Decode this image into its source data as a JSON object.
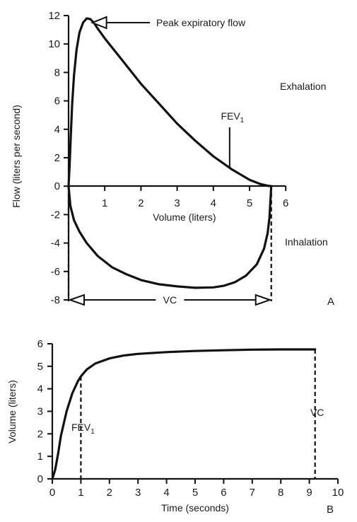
{
  "chart_data": [
    {
      "type": "line",
      "panel": "A",
      "xlabel": "Volume (liters)",
      "ylabel": "Flow (liters per second)",
      "xlim": [
        0,
        6
      ],
      "ylim": [
        -8,
        12
      ],
      "x_ticks": [
        "1",
        "2",
        "3",
        "4",
        "5",
        "6"
      ],
      "y_ticks": [
        "12",
        "10",
        "8",
        "6",
        "4",
        "2",
        "0",
        "-2",
        "-4",
        "-6",
        "-8"
      ],
      "grid": false,
      "series": [
        {
          "x": [
            0.0,
            0.03,
            0.06,
            0.1,
            0.15,
            0.22,
            0.3,
            0.4,
            0.5,
            0.6,
            0.7,
            0.8,
            1.0,
            1.25,
            1.5,
            2.0,
            2.5,
            3.0,
            3.5,
            4.0,
            4.5,
            5.0,
            5.3,
            5.5,
            5.6
          ],
          "y": [
            0.0,
            1.5,
            3.5,
            5.8,
            7.8,
            9.6,
            10.8,
            11.5,
            11.8,
            11.75,
            11.5,
            11.1,
            10.4,
            9.6,
            8.8,
            7.2,
            5.8,
            4.4,
            3.2,
            2.1,
            1.2,
            0.45,
            0.15,
            0.03,
            0.0
          ]
        },
        {
          "x": [
            0.0,
            0.05,
            0.15,
            0.3,
            0.5,
            0.8,
            1.2,
            1.6,
            2.0,
            2.5,
            3.0,
            3.5,
            4.0,
            4.3,
            4.6,
            4.9,
            5.2,
            5.4,
            5.5,
            5.55,
            5.6
          ],
          "y": [
            0.0,
            -1.4,
            -2.4,
            -3.2,
            -4.0,
            -4.9,
            -5.7,
            -6.2,
            -6.6,
            -6.9,
            -7.05,
            -7.15,
            -7.12,
            -7.0,
            -6.75,
            -6.3,
            -5.5,
            -4.4,
            -3.3,
            -2.2,
            0.0
          ]
        }
      ],
      "annotations": {
        "peak": "Peak expiratory flow",
        "fev1_main": "FEV",
        "fev1_sub": "1",
        "fev1_x": 4.45,
        "fev1_y": 1.3,
        "exhalation": "Exhalation",
        "inhalation": "Inhalation",
        "vc": "VC",
        "vc_range": [
          0.0,
          5.6
        ],
        "panel_letter": "A"
      }
    },
    {
      "type": "line",
      "panel": "B",
      "xlabel": "Time (seconds)",
      "ylabel": "Volume (liters)",
      "xlim": [
        0,
        10
      ],
      "ylim": [
        0,
        6
      ],
      "x_ticks": [
        "0",
        "1",
        "2",
        "3",
        "4",
        "5",
        "6",
        "7",
        "8",
        "9",
        "10"
      ],
      "y_ticks": [
        "6",
        "5",
        "4",
        "3",
        "2",
        "1",
        "0"
      ],
      "grid": false,
      "series": [
        {
          "x": [
            0.0,
            0.1,
            0.2,
            0.3,
            0.5,
            0.7,
            0.9,
            1.0,
            1.2,
            1.5,
            2.0,
            2.5,
            3.0,
            4.0,
            5.0,
            6.0,
            7.0,
            8.0,
            9.2
          ],
          "y": [
            0.0,
            0.4,
            1.1,
            1.9,
            3.0,
            3.8,
            4.35,
            4.55,
            4.85,
            5.12,
            5.35,
            5.48,
            5.55,
            5.63,
            5.68,
            5.71,
            5.74,
            5.75,
            5.75
          ]
        }
      ],
      "annotations": {
        "fev1_main": "FEV",
        "fev1_sub": "1",
        "fev1_x": 1.0,
        "fev1_y": 4.55,
        "vc": "VC",
        "vc_x": 9.2,
        "vc_y": 5.75,
        "panel_letter": "B"
      }
    }
  ]
}
